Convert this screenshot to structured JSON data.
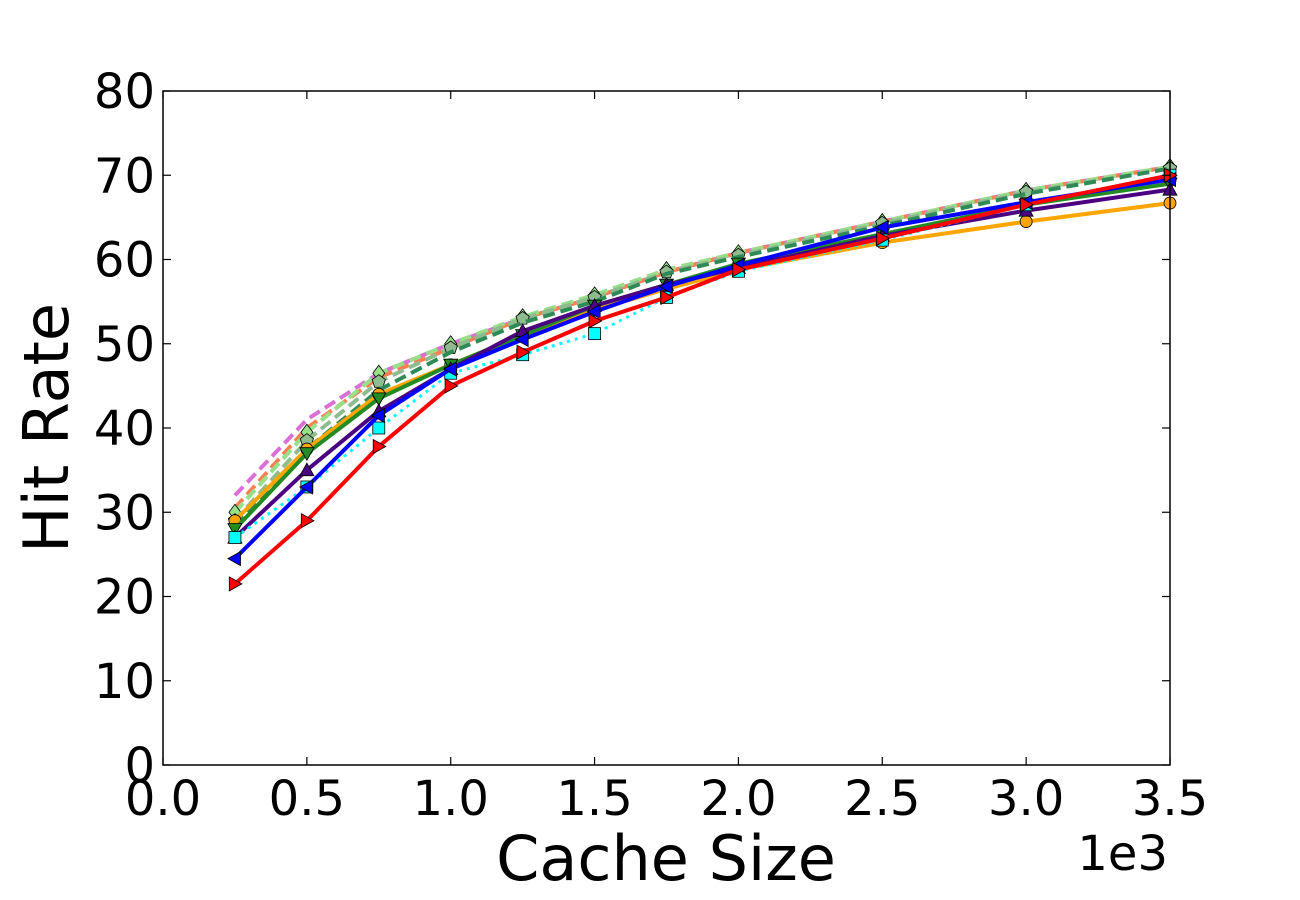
{
  "chart_data": {
    "type": "line",
    "title": "",
    "xlabel": "Cache Size",
    "ylabel": "Hit Rate",
    "x_offset_text": "1e3",
    "xlim": [
      0.0,
      3.5
    ],
    "ylim": [
      0,
      80
    ],
    "x_ticks": [
      "0.0",
      "0.5",
      "1.0",
      "1.5",
      "2.0",
      "2.5",
      "3.0",
      "3.5"
    ],
    "y_ticks": [
      "0",
      "10",
      "20",
      "30",
      "40",
      "50",
      "60",
      "70",
      "80"
    ],
    "grid": false,
    "legend": "none",
    "x": [
      0.25,
      0.5,
      0.75,
      1.0,
      1.25,
      1.5,
      1.75,
      2.0,
      2.5,
      3.0,
      3.5
    ],
    "series": [
      {
        "color": "#da70d6",
        "style": "dashed",
        "marker": "none",
        "values": [
          32.0,
          41.0,
          46.5,
          50.0,
          53.0,
          55.5,
          58.5,
          60.8,
          64.5,
          68.2,
          71.0
        ]
      },
      {
        "color": "#ff7f50",
        "style": "dashed",
        "marker": "none",
        "values": [
          30.5,
          40.0,
          46.0,
          49.5,
          53.0,
          55.5,
          58.5,
          60.8,
          64.5,
          68.2,
          71.0
        ]
      },
      {
        "color": "#98df8a",
        "style": "dashed",
        "marker": "diamond",
        "values": [
          30.0,
          39.5,
          46.5,
          50.0,
          53.2,
          55.8,
          58.8,
          60.8,
          64.5,
          68.2,
          71.0
        ]
      },
      {
        "color": "#8fbc8f",
        "style": "dashed",
        "marker": "pentagon",
        "values": [
          29.0,
          38.5,
          45.5,
          49.5,
          53.0,
          55.5,
          58.5,
          60.5,
          64.3,
          68.0,
          70.8
        ]
      },
      {
        "color": "#2e8b57",
        "style": "dashed",
        "marker": "none",
        "values": [
          28.5,
          37.5,
          44.5,
          49.0,
          52.5,
          55.0,
          58.3,
          60.3,
          64.0,
          67.8,
          70.8
        ]
      },
      {
        "color": "#ffa500",
        "style": "solid",
        "marker": "circle",
        "values": [
          29.0,
          37.5,
          44.0,
          47.5,
          51.0,
          54.0,
          56.5,
          58.8,
          62.0,
          64.5,
          66.7
        ]
      },
      {
        "color": "#228b22",
        "style": "solid",
        "marker": "triangle-down",
        "values": [
          28.0,
          37.0,
          43.5,
          47.5,
          51.0,
          54.5,
          57.0,
          59.5,
          63.0,
          66.5,
          69.0
        ]
      },
      {
        "color": "#4b0082",
        "style": "solid",
        "marker": "triangle-up",
        "values": [
          27.0,
          35.0,
          42.0,
          47.0,
          51.5,
          54.5,
          57.0,
          59.0,
          62.8,
          65.8,
          68.3
        ]
      },
      {
        "color": "#00ffff",
        "style": "dotted",
        "marker": "square",
        "values": [
          27.0,
          33.0,
          40.0,
          46.5,
          48.7,
          51.2,
          55.5,
          58.6,
          62.3,
          66.5,
          70.0
        ]
      },
      {
        "color": "#0000ff",
        "style": "solid",
        "marker": "triangle-left",
        "values": [
          24.5,
          33.0,
          41.5,
          47.0,
          50.5,
          53.8,
          56.8,
          59.3,
          63.8,
          66.8,
          69.5
        ]
      },
      {
        "color": "#ff0000",
        "style": "solid",
        "marker": "triangle-right",
        "values": [
          21.5,
          29.0,
          37.8,
          45.0,
          49.0,
          52.7,
          55.5,
          58.8,
          62.5,
          66.5,
          70.0
        ]
      }
    ]
  }
}
